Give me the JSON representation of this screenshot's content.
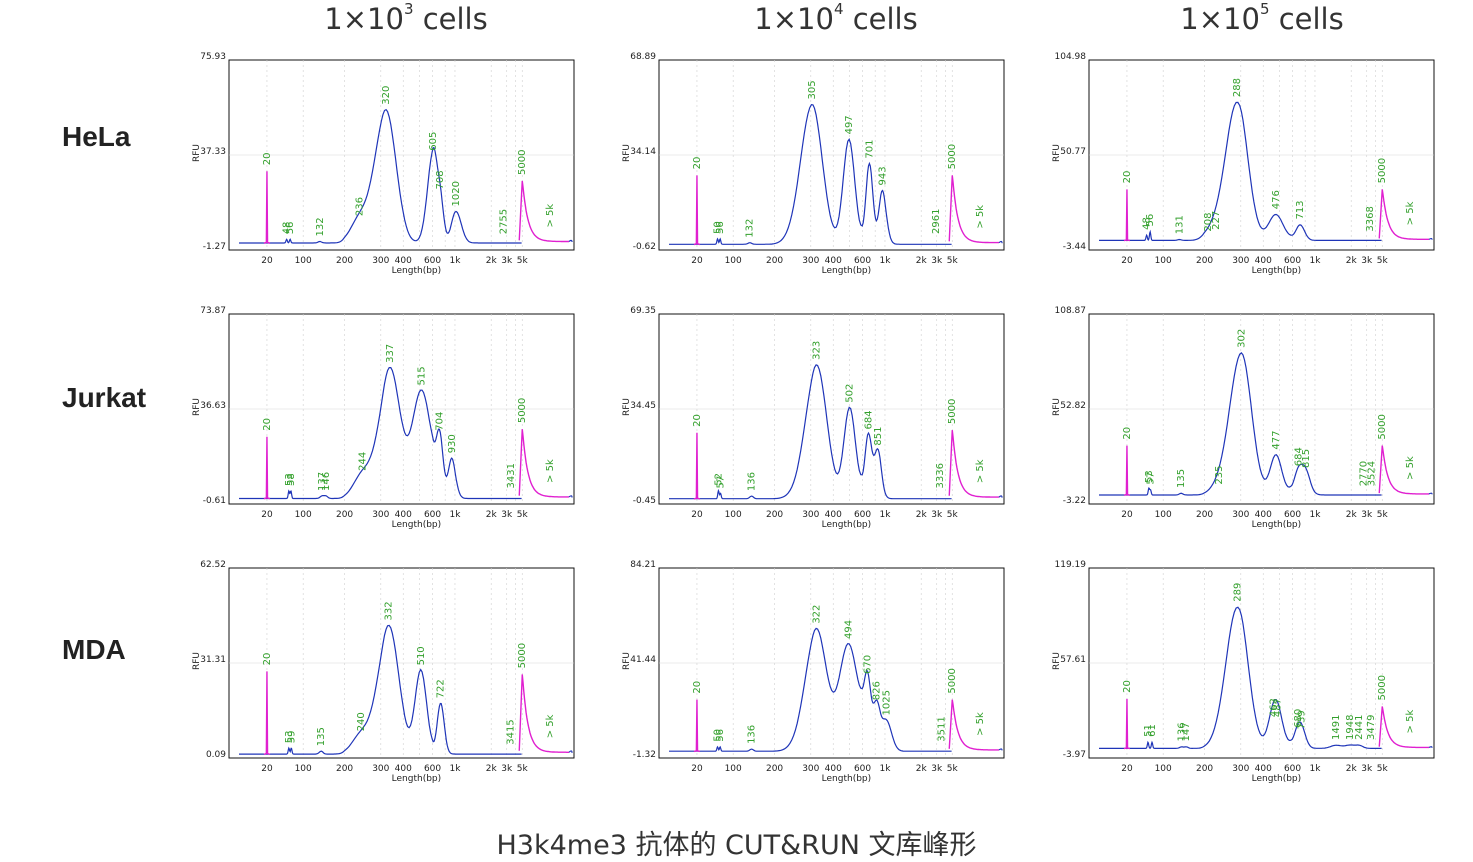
{
  "column_headers": [
    {
      "base": "1×10",
      "exp": "3",
      "unit": " cells"
    },
    {
      "base": "1×10",
      "exp": "4",
      "unit": " cells"
    },
    {
      "base": "1×10",
      "exp": "5",
      "unit": " cells"
    }
  ],
  "row_labels": [
    "HeLa",
    "Jurkat",
    "MDA"
  ],
  "caption": "H3k4me3 抗体的 CUT&RUN 文库峰形",
  "colors": {
    "trace": "#1f35b8",
    "marker": "#e020d0",
    "peak_label": "#33a02c"
  },
  "chart_data": [
    {
      "type": "line",
      "row": 0,
      "col": 0,
      "ylabel": "RFU",
      "xlabel": "Length(bp)",
      "y_ticks": [
        "75.93",
        "37.33",
        "-1.27"
      ],
      "ylim": [
        -1.27,
        75.93
      ],
      "x_tick_labels": [
        "20",
        "100",
        "200",
        "300",
        "400",
        "600",
        "1k",
        "2k",
        "3k",
        "5k"
      ],
      "peaks": [
        {
          "label": "20",
          "bp": 20,
          "rfu": 30
        },
        {
          "label": "48",
          "bp": 48,
          "rfu": 1.5
        },
        {
          "label": "56",
          "bp": 56,
          "rfu": 1.5
        },
        {
          "label": "132",
          "bp": 132,
          "rfu": 0.6
        },
        {
          "label": "236",
          "bp": 236,
          "rfu": 9
        },
        {
          "label": "320",
          "bp": 320,
          "rfu": 55
        },
        {
          "label": "605",
          "bp": 605,
          "rfu": 36
        },
        {
          "label": "708",
          "bp": 708,
          "rfu": 20
        },
        {
          "label": "1020",
          "bp": 1020,
          "rfu": 13
        },
        {
          "label": "2755",
          "bp": 2755,
          "rfu": 1.5
        },
        {
          "label": "5000",
          "bp": 5000,
          "rfu": 26
        },
        {
          "label": "> 5k",
          "bp": null,
          "rfu": 1
        }
      ]
    },
    {
      "type": "line",
      "row": 0,
      "col": 1,
      "ylabel": "RFU",
      "xlabel": "Length(bp)",
      "y_ticks": [
        "68.89",
        "34.14",
        "-0.62"
      ],
      "ylim": [
        -0.62,
        68.89
      ],
      "x_tick_labels": [
        "20",
        "100",
        "200",
        "300",
        "400",
        "600",
        "1k",
        "2k",
        "3k",
        "5k"
      ],
      "peaks": [
        {
          "label": "20",
          "bp": 20,
          "rfu": 26
        },
        {
          "label": "50",
          "bp": 50,
          "rfu": 2
        },
        {
          "label": "56",
          "bp": 56,
          "rfu": 2
        },
        {
          "label": "132",
          "bp": 132,
          "rfu": 0.6
        },
        {
          "label": "305",
          "bp": 305,
          "rfu": 52
        },
        {
          "label": "497",
          "bp": 497,
          "rfu": 39
        },
        {
          "label": "701",
          "bp": 701,
          "rfu": 30
        },
        {
          "label": "943",
          "bp": 943,
          "rfu": 20
        },
        {
          "label": "2961",
          "bp": 2961,
          "rfu": 2
        },
        {
          "label": "5000",
          "bp": 5000,
          "rfu": 26
        },
        {
          "label": "> 5k",
          "bp": null,
          "rfu": 1
        }
      ]
    },
    {
      "type": "line",
      "row": 0,
      "col": 2,
      "ylabel": "RFU",
      "xlabel": "Length(bp)",
      "y_ticks": [
        "104.98",
        "50.77",
        "-3.44"
      ],
      "ylim": [
        -3.44,
        104.98
      ],
      "x_tick_labels": [
        "20",
        "100",
        "200",
        "300",
        "400",
        "600",
        "1k",
        "2k",
        "3k",
        "5k"
      ],
      "peaks": [
        {
          "label": "20",
          "bp": 20,
          "rfu": 30
        },
        {
          "label": "48",
          "bp": 48,
          "rfu": 3
        },
        {
          "label": "56",
          "bp": 56,
          "rfu": 5
        },
        {
          "label": "131",
          "bp": 131,
          "rfu": 0.5
        },
        {
          "label": "208",
          "bp": 208,
          "rfu": 2
        },
        {
          "label": "227",
          "bp": 227,
          "rfu": 3
        },
        {
          "label": "288",
          "bp": 288,
          "rfu": 80
        },
        {
          "label": "476",
          "bp": 476,
          "rfu": 15
        },
        {
          "label": "713",
          "bp": 713,
          "rfu": 9
        },
        {
          "label": "3368",
          "bp": 3368,
          "rfu": 2
        },
        {
          "label": "5000",
          "bp": 5000,
          "rfu": 30
        },
        {
          "label": "> 5k",
          "bp": null,
          "rfu": 1
        }
      ]
    },
    {
      "type": "line",
      "row": 1,
      "col": 0,
      "ylabel": "RFU",
      "xlabel": "Length(bp)",
      "y_ticks": [
        "73.87",
        "36.63",
        "-0.61"
      ],
      "ylim": [
        -0.61,
        73.87
      ],
      "x_tick_labels": [
        "20",
        "100",
        "200",
        "300",
        "400",
        "600",
        "1k",
        "2k",
        "3k",
        "5k"
      ],
      "peaks": [
        {
          "label": "20",
          "bp": 20,
          "rfu": 25
        },
        {
          "label": "53",
          "bp": 53,
          "rfu": 3
        },
        {
          "label": "58",
          "bp": 58,
          "rfu": 3
        },
        {
          "label": "137",
          "bp": 137,
          "rfu": 1
        },
        {
          "label": "146",
          "bp": 146,
          "rfu": 1
        },
        {
          "label": "244",
          "bp": 244,
          "rfu": 9
        },
        {
          "label": "337",
          "bp": 337,
          "rfu": 52
        },
        {
          "label": "515",
          "bp": 515,
          "rfu": 43
        },
        {
          "label": "704",
          "bp": 704,
          "rfu": 25
        },
        {
          "label": "930",
          "bp": 930,
          "rfu": 16
        },
        {
          "label": "3431",
          "bp": 3431,
          "rfu": 2
        },
        {
          "label": "5000",
          "bp": 5000,
          "rfu": 28
        },
        {
          "label": "> 5k",
          "bp": null,
          "rfu": 1
        }
      ]
    },
    {
      "type": "line",
      "row": 1,
      "col": 1,
      "ylabel": "RFU",
      "xlabel": "Length(bp)",
      "y_ticks": [
        "69.35",
        "34.45",
        "-0.45"
      ],
      "ylim": [
        -0.45,
        69.35
      ],
      "x_tick_labels": [
        "20",
        "100",
        "200",
        "300",
        "400",
        "600",
        "1k",
        "2k",
        "3k",
        "5k"
      ],
      "peaks": [
        {
          "label": "20",
          "bp": 20,
          "rfu": 25
        },
        {
          "label": "52",
          "bp": 52,
          "rfu": 3
        },
        {
          "label": "57",
          "bp": 57,
          "rfu": 2
        },
        {
          "label": "136",
          "bp": 136,
          "rfu": 1
        },
        {
          "label": "323",
          "bp": 323,
          "rfu": 50
        },
        {
          "label": "502",
          "bp": 502,
          "rfu": 34
        },
        {
          "label": "684",
          "bp": 684,
          "rfu": 24
        },
        {
          "label": "851",
          "bp": 851,
          "rfu": 18
        },
        {
          "label": "3336",
          "bp": 3336,
          "rfu": 2
        },
        {
          "label": "5000",
          "bp": 5000,
          "rfu": 26
        },
        {
          "label": "> 5k",
          "bp": null,
          "rfu": 1
        }
      ]
    },
    {
      "type": "line",
      "row": 1,
      "col": 2,
      "ylabel": "RFU",
      "xlabel": "Length(bp)",
      "y_ticks": [
        "108.87",
        "52.82",
        "-3.22"
      ],
      "ylim": [
        -3.22,
        108.87
      ],
      "x_tick_labels": [
        "20",
        "100",
        "200",
        "300",
        "400",
        "600",
        "1k",
        "2k",
        "3k",
        "5k"
      ],
      "peaks": [
        {
          "label": "20",
          "bp": 20,
          "rfu": 30
        },
        {
          "label": "53",
          "bp": 53,
          "rfu": 4
        },
        {
          "label": "57",
          "bp": 57,
          "rfu": 3
        },
        {
          "label": "135",
          "bp": 135,
          "rfu": 1
        },
        {
          "label": "235",
          "bp": 235,
          "rfu": 3
        },
        {
          "label": "302",
          "bp": 302,
          "rfu": 85
        },
        {
          "label": "477",
          "bp": 477,
          "rfu": 24
        },
        {
          "label": "684",
          "bp": 684,
          "rfu": 14
        },
        {
          "label": "815",
          "bp": 815,
          "rfu": 13
        },
        {
          "label": "2770",
          "bp": 2770,
          "rfu": 2
        },
        {
          "label": "3524",
          "bp": 3524,
          "rfu": 2
        },
        {
          "label": "5000",
          "bp": 5000,
          "rfu": 30
        },
        {
          "label": "> 5k",
          "bp": null,
          "rfu": 1
        }
      ]
    },
    {
      "type": "line",
      "row": 2,
      "col": 0,
      "ylabel": "RFU",
      "xlabel": "Length(bp)",
      "y_ticks": [
        "62.52",
        "31.31",
        "0.09"
      ],
      "ylim": [
        0.09,
        62.52
      ],
      "x_tick_labels": [
        "20",
        "100",
        "200",
        "300",
        "400",
        "600",
        "1k",
        "2k",
        "3k",
        "5k"
      ],
      "peaks": [
        {
          "label": "20",
          "bp": 20,
          "rfu": 28
        },
        {
          "label": "53",
          "bp": 53,
          "rfu": 2
        },
        {
          "label": "59",
          "bp": 59,
          "rfu": 2
        },
        {
          "label": "135",
          "bp": 135,
          "rfu": 1
        },
        {
          "label": "240",
          "bp": 240,
          "rfu": 6
        },
        {
          "label": "332",
          "bp": 332,
          "rfu": 43
        },
        {
          "label": "510",
          "bp": 510,
          "rfu": 28
        },
        {
          "label": "722",
          "bp": 722,
          "rfu": 17
        },
        {
          "label": "3415",
          "bp": 3415,
          "rfu": 1.5
        },
        {
          "label": "5000",
          "bp": 5000,
          "rfu": 27
        },
        {
          "label": "> 5k",
          "bp": null,
          "rfu": 1
        }
      ]
    },
    {
      "type": "line",
      "row": 2,
      "col": 1,
      "ylabel": "RFU",
      "xlabel": "Length(bp)",
      "y_ticks": [
        "84.21",
        "41.44",
        "-1.32"
      ],
      "ylim": [
        -1.32,
        84.21
      ],
      "x_tick_labels": [
        "20",
        "100",
        "200",
        "300",
        "400",
        "600",
        "1k",
        "2k",
        "3k",
        "5k"
      ],
      "peaks": [
        {
          "label": "20",
          "bp": 20,
          "rfu": 24
        },
        {
          "label": "50",
          "bp": 50,
          "rfu": 2
        },
        {
          "label": "56",
          "bp": 56,
          "rfu": 2
        },
        {
          "label": "136",
          "bp": 136,
          "rfu": 1
        },
        {
          "label": "322",
          "bp": 322,
          "rfu": 56
        },
        {
          "label": "494",
          "bp": 494,
          "rfu": 49
        },
        {
          "label": "670",
          "bp": 670,
          "rfu": 33
        },
        {
          "label": "826",
          "bp": 826,
          "rfu": 21
        },
        {
          "label": "1025",
          "bp": 1025,
          "rfu": 14
        },
        {
          "label": "3511",
          "bp": 3511,
          "rfu": 2
        },
        {
          "label": "5000",
          "bp": 5000,
          "rfu": 24
        },
        {
          "label": "> 5k",
          "bp": null,
          "rfu": 1
        }
      ]
    },
    {
      "type": "line",
      "row": 2,
      "col": 2,
      "ylabel": "RFU",
      "xlabel": "Length(bp)",
      "y_ticks": [
        "119.19",
        "57.61",
        "-3.97"
      ],
      "ylim": [
        -3.97,
        119.19
      ],
      "x_tick_labels": [
        "20",
        "100",
        "200",
        "300",
        "400",
        "600",
        "1k",
        "2k",
        "3k",
        "5k"
      ],
      "peaks": [
        {
          "label": "20",
          "bp": 20,
          "rfu": 33
        },
        {
          "label": "51",
          "bp": 51,
          "rfu": 4
        },
        {
          "label": "61",
          "bp": 61,
          "rfu": 4
        },
        {
          "label": "136",
          "bp": 136,
          "rfu": 1
        },
        {
          "label": "147",
          "bp": 147,
          "rfu": 1
        },
        {
          "label": "289",
          "bp": 289,
          "rfu": 93
        },
        {
          "label": "462",
          "bp": 462,
          "rfu": 17
        },
        {
          "label": "487",
          "bp": 487,
          "rfu": 17
        },
        {
          "label": "680",
          "bp": 680,
          "rfu": 10
        },
        {
          "label": "739",
          "bp": 739,
          "rfu": 9
        },
        {
          "label": "1491",
          "bp": 1491,
          "rfu": 2
        },
        {
          "label": "1948",
          "bp": 1948,
          "rfu": 2
        },
        {
          "label": "2441",
          "bp": 2441,
          "rfu": 2
        },
        {
          "label": "3479",
          "bp": 3479,
          "rfu": 2
        },
        {
          "label": "5000",
          "bp": 5000,
          "rfu": 28
        },
        {
          "label": "> 5k",
          "bp": null,
          "rfu": 1
        }
      ]
    }
  ]
}
